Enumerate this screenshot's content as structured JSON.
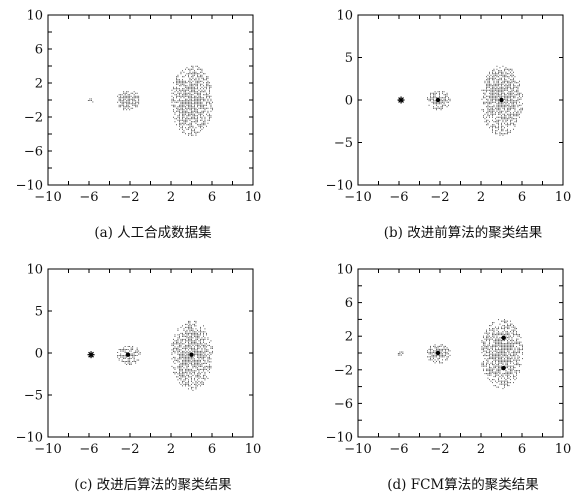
{
  "chart_data": [
    {
      "type": "scatter",
      "caption": "(a) 人工合成数据集",
      "xlim": [
        -10,
        10
      ],
      "ylim": [
        -10,
        10
      ],
      "xticks": [
        -10,
        -6,
        -2,
        2,
        6,
        10
      ],
      "xtick_labels": [
        "−10",
        "−6",
        "−2",
        "2",
        "6",
        "10"
      ],
      "yticks": [
        -10,
        -6,
        -2,
        2,
        6,
        10
      ],
      "ytick_labels": [
        "−10",
        "−6",
        "−2",
        "2",
        "6",
        "10"
      ],
      "xtick_marks": [
        -10,
        -8,
        -6,
        -4,
        -2,
        0,
        2,
        4,
        6,
        8,
        10
      ],
      "ytick_marks": [
        -10,
        -8,
        -6,
        -4,
        -2,
        0,
        2,
        4,
        6,
        8,
        10
      ],
      "grid": false,
      "clusters": [
        {
          "cx": -5.9,
          "cy": 0.0,
          "rx": 0.35,
          "ry": 0.35
        },
        {
          "cx": -2.2,
          "cy": 0.0,
          "rx": 1.2,
          "ry": 1.2
        },
        {
          "cx": 4.0,
          "cy": 0.0,
          "rx": 2.1,
          "ry": 4.2
        }
      ],
      "centers": []
    },
    {
      "type": "scatter",
      "caption": "(b) 改进前算法的聚类结果",
      "xlim": [
        -10,
        10
      ],
      "ylim": [
        -10,
        10
      ],
      "xticks": [
        -10,
        -6,
        -2,
        2,
        6,
        10
      ],
      "xtick_labels": [
        "−10",
        "−6",
        "−2",
        "2",
        "6",
        "10"
      ],
      "yticks": [
        -10,
        -5,
        0,
        5,
        10
      ],
      "ytick_labels": [
        "−10",
        "−5",
        "0",
        "5",
        "10"
      ],
      "xtick_marks": [
        -10,
        -8,
        -6,
        -4,
        -2,
        0,
        2,
        4,
        6,
        8,
        10
      ],
      "ytick_marks": [
        -10,
        -5,
        0,
        5,
        10
      ],
      "grid": false,
      "clusters": [
        {
          "cx": -5.9,
          "cy": 0.0,
          "rx": 0.35,
          "ry": 0.35
        },
        {
          "cx": -2.2,
          "cy": 0.0,
          "rx": 1.2,
          "ry": 1.2
        },
        {
          "cx": 4.0,
          "cy": 0.0,
          "rx": 2.1,
          "ry": 4.2
        }
      ],
      "centers": [
        {
          "x": -5.8,
          "y": 0.0,
          "marker": "star"
        },
        {
          "x": -2.2,
          "y": 0.0,
          "marker": "dot"
        },
        {
          "x": 4.0,
          "y": 0.0,
          "marker": "dot"
        }
      ]
    },
    {
      "type": "scatter",
      "caption": "(c) 改进后算法的聚类结果",
      "xlim": [
        -10,
        10
      ],
      "ylim": [
        -10,
        10
      ],
      "xticks": [
        -10,
        -6,
        -2,
        2,
        6,
        10
      ],
      "xtick_labels": [
        "−10",
        "−6",
        "−2",
        "2",
        "6",
        "10"
      ],
      "yticks": [
        -10,
        -5,
        0,
        5,
        10
      ],
      "ytick_labels": [
        "−10",
        "−5",
        "0",
        "5",
        "10"
      ],
      "xtick_marks": [
        -10,
        -8,
        -6,
        -4,
        -2,
        0,
        2,
        4,
        6,
        8,
        10
      ],
      "ytick_marks": [
        -10,
        -5,
        0,
        5,
        10
      ],
      "grid": false,
      "clusters": [
        {
          "cx": -5.9,
          "cy": -0.2,
          "rx": 0.35,
          "ry": 0.35
        },
        {
          "cx": -2.2,
          "cy": -0.2,
          "rx": 1.2,
          "ry": 1.2
        },
        {
          "cx": 4.0,
          "cy": -0.2,
          "rx": 2.1,
          "ry": 4.2
        }
      ],
      "centers": [
        {
          "x": -5.8,
          "y": -0.2,
          "marker": "star"
        },
        {
          "x": -2.2,
          "y": -0.2,
          "marker": "dot"
        },
        {
          "x": 4.0,
          "y": -0.2,
          "marker": "dot"
        }
      ]
    },
    {
      "type": "scatter",
      "caption": "(d) FCM算法的聚类结果",
      "xlim": [
        -10,
        10
      ],
      "ylim": [
        -10,
        10
      ],
      "xticks": [
        -10,
        -6,
        -2,
        2,
        6,
        10
      ],
      "xtick_labels": [
        "−10",
        "−6",
        "−2",
        "2",
        "6",
        "10"
      ],
      "yticks": [
        -10,
        -6,
        -2,
        2,
        6,
        10
      ],
      "ytick_labels": [
        "−10",
        "−6",
        "−2",
        "2",
        "6",
        "10"
      ],
      "xtick_marks": [
        -10,
        -8,
        -6,
        -4,
        -2,
        0,
        2,
        4,
        6,
        8,
        10
      ],
      "ytick_marks": [
        -10,
        -8,
        -6,
        -4,
        -2,
        0,
        2,
        4,
        6,
        8,
        10
      ],
      "grid": false,
      "clusters": [
        {
          "cx": -5.9,
          "cy": 0.0,
          "rx": 0.35,
          "ry": 0.35
        },
        {
          "cx": -2.2,
          "cy": 0.0,
          "rx": 1.2,
          "ry": 1.2
        },
        {
          "cx": 4.0,
          "cy": 0.0,
          "rx": 2.1,
          "ry": 4.2
        }
      ],
      "centers": [
        {
          "x": -2.2,
          "y": 0.0,
          "marker": "dot"
        },
        {
          "x": 4.2,
          "y": 1.8,
          "marker": "dot"
        },
        {
          "x": 4.2,
          "y": -1.8,
          "marker": "dot"
        }
      ]
    }
  ]
}
